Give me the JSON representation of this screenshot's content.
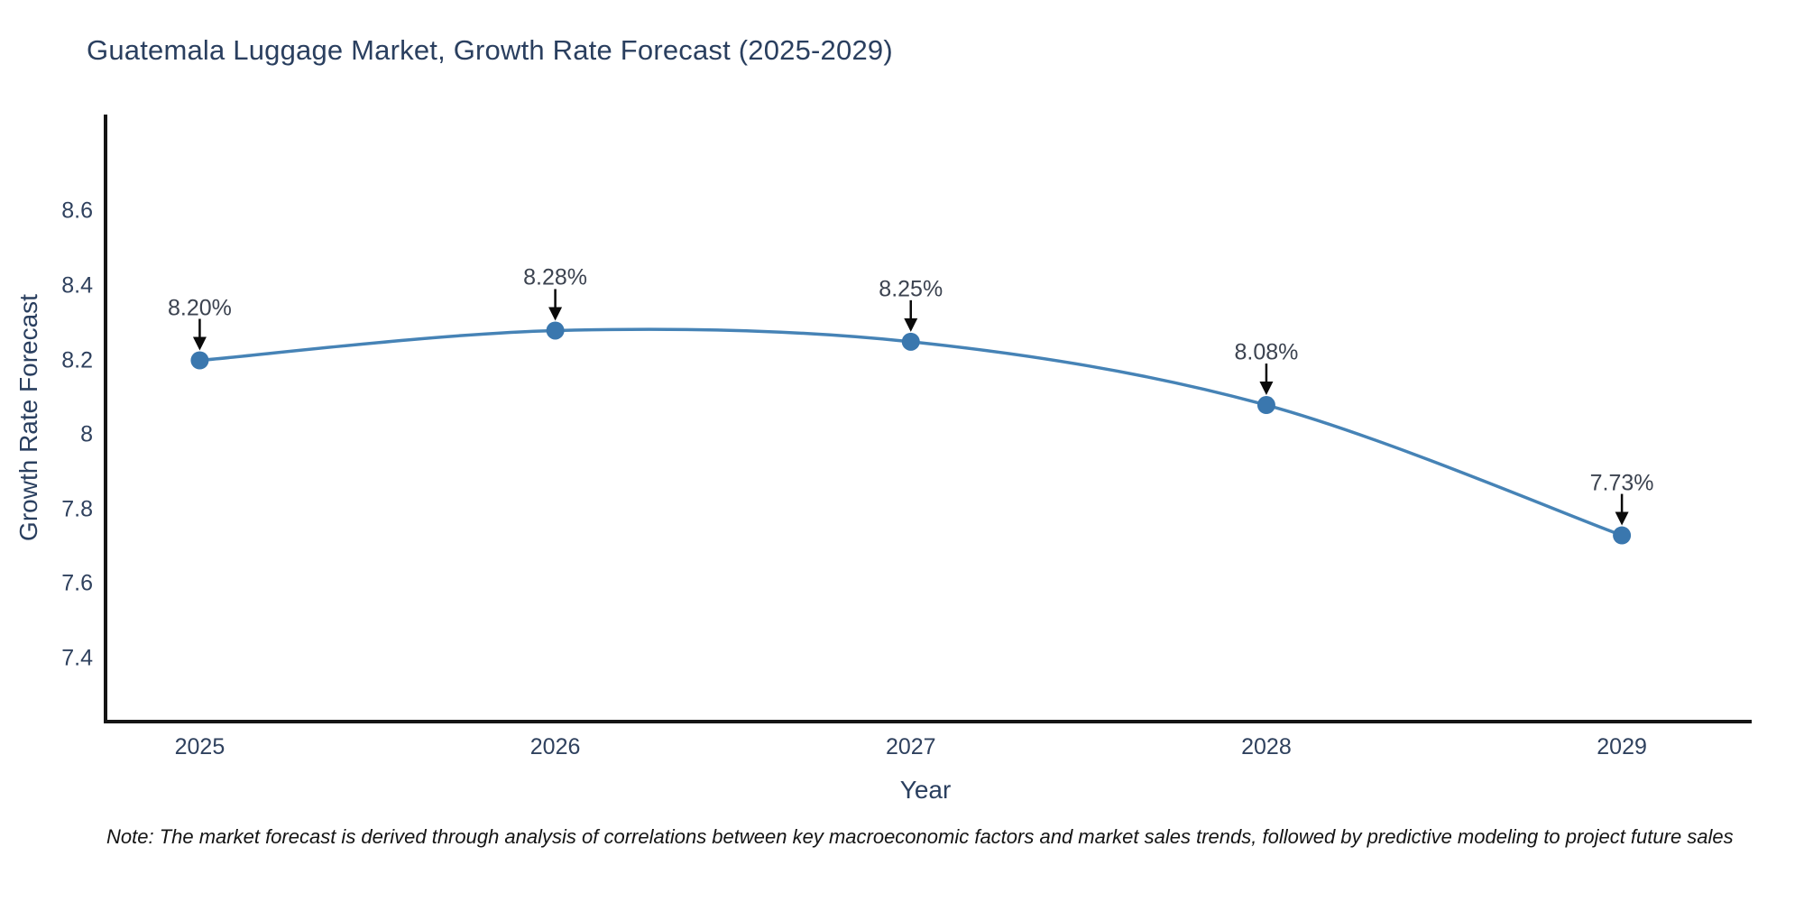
{
  "title": "Guatemala Luggage Market, Growth Rate Forecast (2025-2029)",
  "note": "Note: The market forecast is derived through analysis of correlations between key macroeconomic factors and market sales trends, followed by predictive modeling to project future sales",
  "chart_data": {
    "type": "line",
    "x": [
      2025,
      2026,
      2027,
      2028,
      2029
    ],
    "values": [
      8.2,
      8.28,
      8.25,
      8.08,
      7.73
    ],
    "point_labels": [
      "8.20%",
      "8.28%",
      "8.25%",
      "8.08%",
      "7.73%"
    ],
    "title": "Guatemala Luggage Market, Growth Rate Forecast (2025-2029)",
    "xlabel": "Year",
    "ylabel": "Growth Rate Forecast",
    "xtick_labels": [
      "2025",
      "2026",
      "2027",
      "2028",
      "2029"
    ],
    "yticks": [
      7.4,
      7.6,
      7.8,
      8,
      8.2,
      8.4,
      8.6
    ],
    "ytick_labels": [
      "7.4",
      "7.6",
      "7.8",
      "8",
      "8.2",
      "8.4",
      "8.6"
    ],
    "xlim": [
      2024.73,
      2029.36
    ],
    "ylim": [
      7.23,
      8.86
    ],
    "grid": false,
    "legend": "none",
    "line_color": "#4683b6",
    "marker_color": "#3a77ae",
    "arrow_color": "#0a0a0a"
  },
  "colors": {
    "title_text": "#2a3f5f",
    "axis_text": "#2f415e",
    "axis_line": "#151515",
    "background": "#ffffff"
  }
}
